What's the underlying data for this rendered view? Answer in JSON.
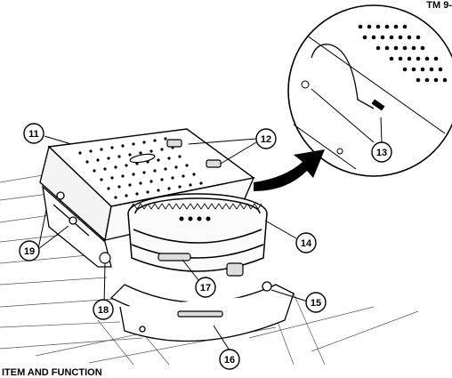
{
  "header": {
    "tm_label": "TM 9-"
  },
  "footer": {
    "heading": "ITEM AND FUNCTION"
  },
  "callouts": [
    {
      "id": "11",
      "label": "11"
    },
    {
      "id": "12",
      "label": "12"
    },
    {
      "id": "13",
      "label": "13"
    },
    {
      "id": "14",
      "label": "14"
    },
    {
      "id": "15",
      "label": "15"
    },
    {
      "id": "16",
      "label": "16"
    },
    {
      "id": "17",
      "label": "17"
    },
    {
      "id": "18",
      "label": "18"
    },
    {
      "id": "19",
      "label": "19"
    }
  ]
}
